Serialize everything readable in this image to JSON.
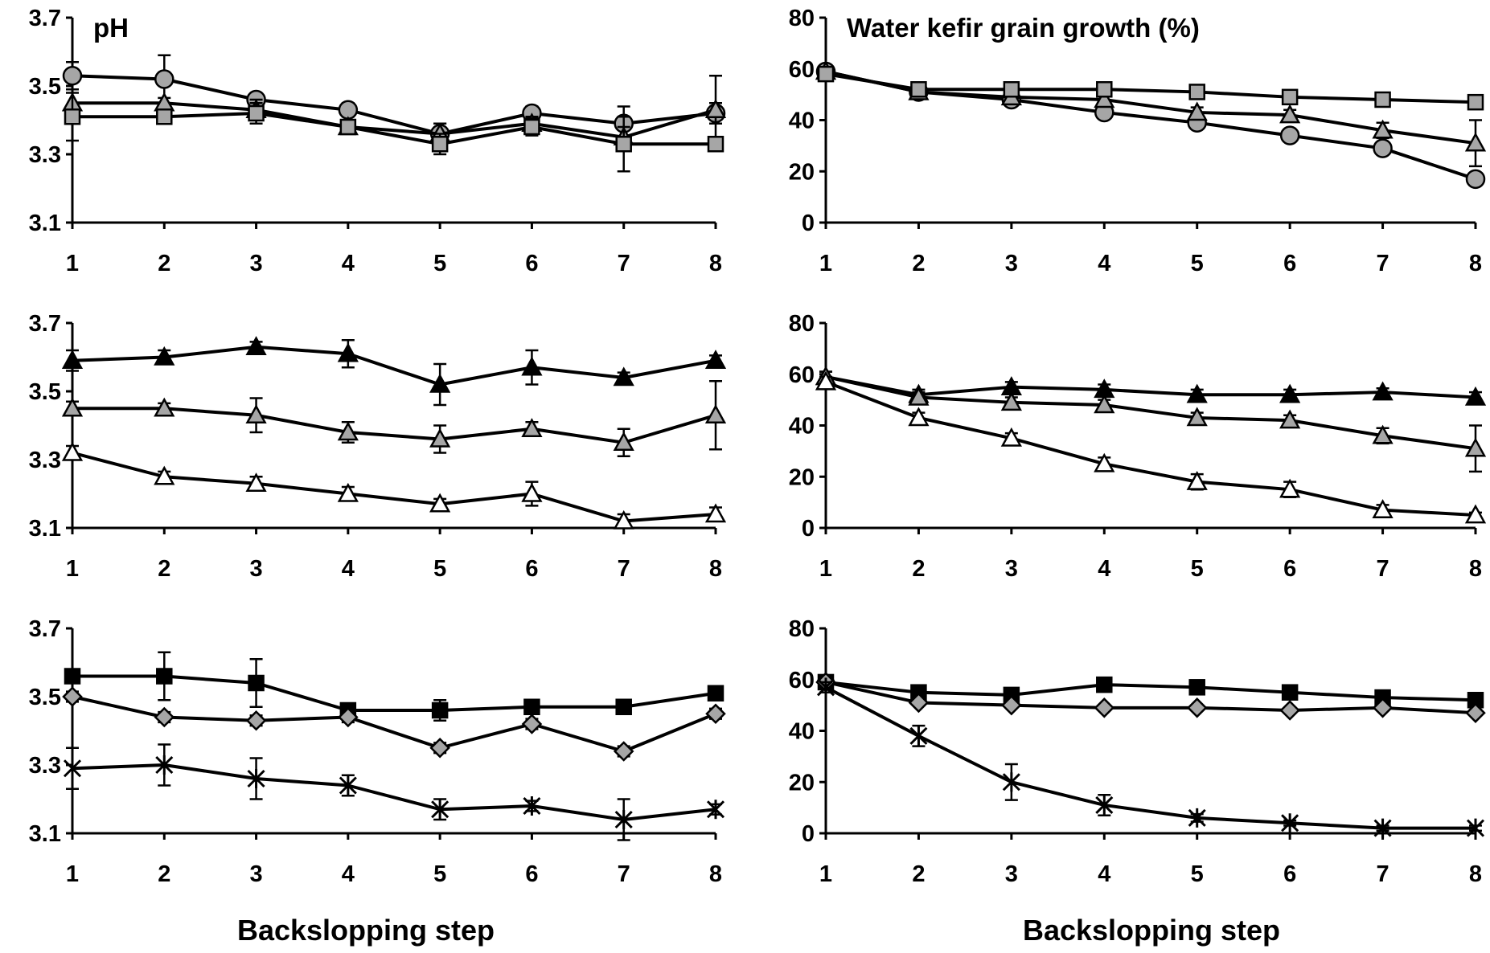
{
  "figure": {
    "xlabel_bottom_left": "Backslopping step",
    "xlabel_bottom_right": "Backslopping step"
  },
  "chart_data": [
    {
      "id": "ph-a",
      "type": "line",
      "title": "pH",
      "xlabel": "",
      "ylabel": "",
      "categories": [
        "1",
        "2",
        "3",
        "4",
        "5",
        "6",
        "7",
        "8"
      ],
      "yticks": [
        "3.1",
        "3.3",
        "3.5",
        "3.7"
      ],
      "ylim": [
        3.1,
        3.7
      ],
      "series": [
        {
          "name": "circle-grey",
          "marker": "circle",
          "fill": "#a6a6a6",
          "values": [
            3.53,
            3.52,
            3.46,
            3.43,
            3.36,
            3.42,
            3.39,
            3.42
          ],
          "err": [
            0.04,
            0.07,
            0.015,
            0.02,
            0.03,
            0.02,
            0.05,
            0.03
          ]
        },
        {
          "name": "triangle-grey",
          "marker": "triangle",
          "fill": "#a6a6a6",
          "values": [
            3.45,
            3.45,
            3.43,
            3.38,
            3.36,
            3.39,
            3.35,
            3.43
          ],
          "err": [
            0.04,
            0.015,
            0.03,
            0.02,
            0.03,
            0.02,
            0.03,
            0.1
          ]
        },
        {
          "name": "square-grey",
          "marker": "square",
          "fill": "#a6a6a6",
          "values": [
            3.41,
            3.41,
            3.42,
            3.38,
            3.33,
            3.38,
            3.33,
            3.33
          ],
          "err": [
            0.07,
            0.015,
            0.03,
            0.02,
            0.03,
            0.025,
            0.08,
            0.02
          ]
        }
      ]
    },
    {
      "id": "growth-a",
      "type": "line",
      "title": "Water kefir grain growth (%)",
      "xlabel": "",
      "ylabel": "",
      "categories": [
        "1",
        "2",
        "3",
        "4",
        "5",
        "6",
        "7",
        "8"
      ],
      "yticks": [
        "0",
        "20",
        "40",
        "60",
        "80"
      ],
      "ylim": [
        0,
        80
      ],
      "series": [
        {
          "name": "circle-grey",
          "marker": "circle",
          "fill": "#a6a6a6",
          "values": [
            59,
            51,
            48,
            43,
            39,
            34,
            29,
            17
          ],
          "err": [
            1,
            1.5,
            1,
            1.5,
            1.5,
            2,
            2,
            2
          ]
        },
        {
          "name": "triangle-grey",
          "marker": "triangle",
          "fill": "#a6a6a6",
          "values": [
            59,
            51,
            49,
            48,
            43,
            42,
            36,
            31
          ],
          "err": [
            1,
            1.5,
            1,
            2,
            2,
            2,
            3,
            9
          ]
        },
        {
          "name": "square-grey",
          "marker": "square",
          "fill": "#a6a6a6",
          "values": [
            58,
            52,
            52,
            52,
            51,
            49,
            48,
            47
          ],
          "err": [
            1,
            1,
            1,
            1,
            1,
            1,
            1,
            1
          ]
        }
      ]
    },
    {
      "id": "ph-b",
      "type": "line",
      "title": "",
      "xlabel": "",
      "ylabel": "",
      "categories": [
        "1",
        "2",
        "3",
        "4",
        "5",
        "6",
        "7",
        "8"
      ],
      "yticks": [
        "3.1",
        "3.3",
        "3.5",
        "3.7"
      ],
      "ylim": [
        3.1,
        3.7
      ],
      "series": [
        {
          "name": "triangle-black",
          "marker": "triangle",
          "fill": "#000000",
          "values": [
            3.59,
            3.6,
            3.63,
            3.61,
            3.52,
            3.57,
            3.54,
            3.59
          ],
          "err": [
            0.03,
            0.02,
            0.015,
            0.04,
            0.06,
            0.05,
            0.015,
            0.015
          ]
        },
        {
          "name": "triangle-grey",
          "marker": "triangle",
          "fill": "#a6a6a6",
          "values": [
            3.45,
            3.45,
            3.43,
            3.38,
            3.36,
            3.39,
            3.35,
            3.43
          ],
          "err": [
            0.02,
            0.015,
            0.05,
            0.03,
            0.04,
            0.02,
            0.04,
            0.1
          ]
        },
        {
          "name": "triangle-white",
          "marker": "triangle",
          "fill": "#ffffff",
          "values": [
            3.32,
            3.25,
            3.23,
            3.2,
            3.17,
            3.2,
            3.12,
            3.14
          ],
          "err": [
            0.02,
            0.015,
            0.02,
            0.02,
            0.015,
            0.035,
            0.02,
            0.02
          ]
        }
      ]
    },
    {
      "id": "growth-b",
      "type": "line",
      "title": "",
      "xlabel": "",
      "ylabel": "",
      "categories": [
        "1",
        "2",
        "3",
        "4",
        "5",
        "6",
        "7",
        "8"
      ],
      "yticks": [
        "0",
        "20",
        "40",
        "60",
        "80"
      ],
      "ylim": [
        0,
        80
      ],
      "series": [
        {
          "name": "triangle-black",
          "marker": "triangle",
          "fill": "#000000",
          "values": [
            59,
            52,
            55,
            54,
            52,
            52,
            53,
            51
          ],
          "err": [
            2,
            2,
            2,
            2,
            2,
            2,
            1.5,
            2
          ]
        },
        {
          "name": "triangle-grey",
          "marker": "triangle",
          "fill": "#a6a6a6",
          "values": [
            59,
            51,
            49,
            48,
            43,
            42,
            36,
            31
          ],
          "err": [
            2,
            2,
            2,
            2,
            2,
            2,
            3,
            9
          ]
        },
        {
          "name": "triangle-white",
          "marker": "triangle",
          "fill": "#ffffff",
          "values": [
            57,
            43,
            35,
            25,
            18,
            15,
            7,
            5
          ],
          "err": [
            2,
            2,
            2,
            2.5,
            3,
            3,
            2,
            1
          ]
        }
      ]
    },
    {
      "id": "ph-c",
      "type": "line",
      "title": "",
      "xlabel": "Backslopping step",
      "ylabel": "",
      "categories": [
        "1",
        "2",
        "3",
        "4",
        "5",
        "6",
        "7",
        "8"
      ],
      "yticks": [
        "3.1",
        "3.3",
        "3.5",
        "3.7"
      ],
      "ylim": [
        3.1,
        3.7
      ],
      "series": [
        {
          "name": "square-black",
          "marker": "square",
          "fill": "#000000",
          "values": [
            3.56,
            3.56,
            3.54,
            3.46,
            3.46,
            3.47,
            3.47,
            3.51
          ],
          "err": [
            0.02,
            0.07,
            0.07,
            0.015,
            0.03,
            0.015,
            0.015,
            0.015
          ]
        },
        {
          "name": "diamond-grey",
          "marker": "diamond",
          "fill": "#a6a6a6",
          "values": [
            3.5,
            3.44,
            3.43,
            3.44,
            3.35,
            3.42,
            3.34,
            3.45
          ],
          "err": [
            0.015,
            0.015,
            0.015,
            0.015,
            0.015,
            0.015,
            0.015,
            0.015
          ]
        },
        {
          "name": "star-black",
          "marker": "star",
          "fill": "#000000",
          "values": [
            3.29,
            3.3,
            3.26,
            3.24,
            3.17,
            3.18,
            3.14,
            3.17
          ],
          "err": [
            0.06,
            0.06,
            0.06,
            0.03,
            0.03,
            0.015,
            0.06,
            0.015
          ]
        }
      ]
    },
    {
      "id": "growth-c",
      "type": "line",
      "title": "",
      "xlabel": "Backslopping step",
      "ylabel": "",
      "categories": [
        "1",
        "2",
        "3",
        "4",
        "5",
        "6",
        "7",
        "8"
      ],
      "yticks": [
        "0",
        "20",
        "40",
        "60",
        "80"
      ],
      "ylim": [
        0,
        80
      ],
      "series": [
        {
          "name": "square-black",
          "marker": "square",
          "fill": "#000000",
          "values": [
            59,
            55,
            54,
            58,
            57,
            55,
            53,
            52
          ],
          "err": [
            1,
            1,
            1,
            1,
            1,
            1,
            1,
            1
          ]
        },
        {
          "name": "diamond-grey",
          "marker": "diamond",
          "fill": "#a6a6a6",
          "values": [
            59,
            51,
            50,
            49,
            49,
            48,
            49,
            47
          ],
          "err": [
            1,
            1,
            1,
            1,
            1,
            1,
            1,
            1
          ]
        },
        {
          "name": "star-black",
          "marker": "star",
          "fill": "#000000",
          "values": [
            57,
            38,
            20,
            11,
            6,
            4,
            2,
            2
          ],
          "err": [
            2,
            4,
            7,
            4,
            1.5,
            1,
            1,
            1
          ]
        }
      ]
    }
  ]
}
